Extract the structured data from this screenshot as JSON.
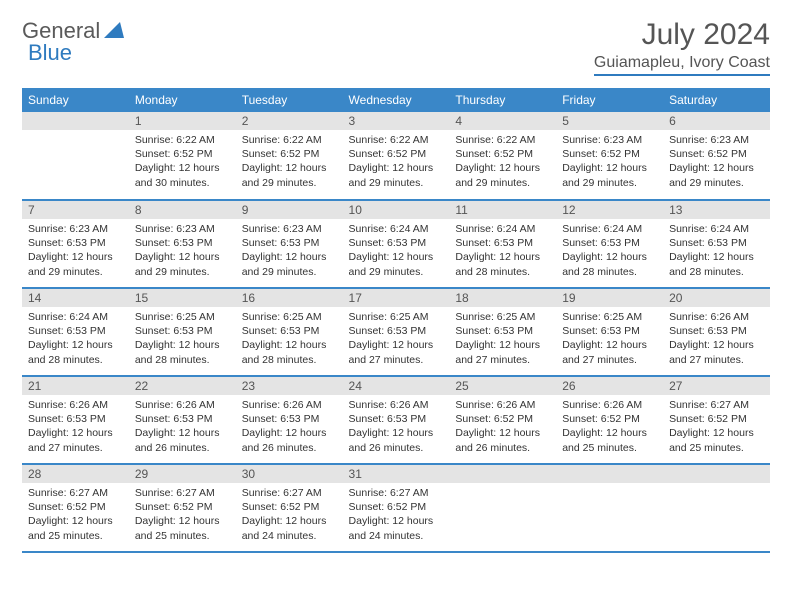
{
  "logo": {
    "general": "General",
    "blue": "Blue"
  },
  "title": "July 2024",
  "location": "Guiamapleu, Ivory Coast",
  "colors": {
    "header_bg": "#3a87c8",
    "daynum_bg": "#e4e4e4",
    "border": "#3a87c8",
    "logo_blue": "#2f7bbf",
    "text": "#333333"
  },
  "weekdays": [
    "Sunday",
    "Monday",
    "Tuesday",
    "Wednesday",
    "Thursday",
    "Friday",
    "Saturday"
  ],
  "weeks": [
    [
      {
        "num": "",
        "lines": []
      },
      {
        "num": "1",
        "lines": [
          "Sunrise: 6:22 AM",
          "Sunset: 6:52 PM",
          "Daylight: 12 hours and 30 minutes."
        ]
      },
      {
        "num": "2",
        "lines": [
          "Sunrise: 6:22 AM",
          "Sunset: 6:52 PM",
          "Daylight: 12 hours and 29 minutes."
        ]
      },
      {
        "num": "3",
        "lines": [
          "Sunrise: 6:22 AM",
          "Sunset: 6:52 PM",
          "Daylight: 12 hours and 29 minutes."
        ]
      },
      {
        "num": "4",
        "lines": [
          "Sunrise: 6:22 AM",
          "Sunset: 6:52 PM",
          "Daylight: 12 hours and 29 minutes."
        ]
      },
      {
        "num": "5",
        "lines": [
          "Sunrise: 6:23 AM",
          "Sunset: 6:52 PM",
          "Daylight: 12 hours and 29 minutes."
        ]
      },
      {
        "num": "6",
        "lines": [
          "Sunrise: 6:23 AM",
          "Sunset: 6:52 PM",
          "Daylight: 12 hours and 29 minutes."
        ]
      }
    ],
    [
      {
        "num": "7",
        "lines": [
          "Sunrise: 6:23 AM",
          "Sunset: 6:53 PM",
          "Daylight: 12 hours and 29 minutes."
        ]
      },
      {
        "num": "8",
        "lines": [
          "Sunrise: 6:23 AM",
          "Sunset: 6:53 PM",
          "Daylight: 12 hours and 29 minutes."
        ]
      },
      {
        "num": "9",
        "lines": [
          "Sunrise: 6:23 AM",
          "Sunset: 6:53 PM",
          "Daylight: 12 hours and 29 minutes."
        ]
      },
      {
        "num": "10",
        "lines": [
          "Sunrise: 6:24 AM",
          "Sunset: 6:53 PM",
          "Daylight: 12 hours and 29 minutes."
        ]
      },
      {
        "num": "11",
        "lines": [
          "Sunrise: 6:24 AM",
          "Sunset: 6:53 PM",
          "Daylight: 12 hours and 28 minutes."
        ]
      },
      {
        "num": "12",
        "lines": [
          "Sunrise: 6:24 AM",
          "Sunset: 6:53 PM",
          "Daylight: 12 hours and 28 minutes."
        ]
      },
      {
        "num": "13",
        "lines": [
          "Sunrise: 6:24 AM",
          "Sunset: 6:53 PM",
          "Daylight: 12 hours and 28 minutes."
        ]
      }
    ],
    [
      {
        "num": "14",
        "lines": [
          "Sunrise: 6:24 AM",
          "Sunset: 6:53 PM",
          "Daylight: 12 hours and 28 minutes."
        ]
      },
      {
        "num": "15",
        "lines": [
          "Sunrise: 6:25 AM",
          "Sunset: 6:53 PM",
          "Daylight: 12 hours and 28 minutes."
        ]
      },
      {
        "num": "16",
        "lines": [
          "Sunrise: 6:25 AM",
          "Sunset: 6:53 PM",
          "Daylight: 12 hours and 28 minutes."
        ]
      },
      {
        "num": "17",
        "lines": [
          "Sunrise: 6:25 AM",
          "Sunset: 6:53 PM",
          "Daylight: 12 hours and 27 minutes."
        ]
      },
      {
        "num": "18",
        "lines": [
          "Sunrise: 6:25 AM",
          "Sunset: 6:53 PM",
          "Daylight: 12 hours and 27 minutes."
        ]
      },
      {
        "num": "19",
        "lines": [
          "Sunrise: 6:25 AM",
          "Sunset: 6:53 PM",
          "Daylight: 12 hours and 27 minutes."
        ]
      },
      {
        "num": "20",
        "lines": [
          "Sunrise: 6:26 AM",
          "Sunset: 6:53 PM",
          "Daylight: 12 hours and 27 minutes."
        ]
      }
    ],
    [
      {
        "num": "21",
        "lines": [
          "Sunrise: 6:26 AM",
          "Sunset: 6:53 PM",
          "Daylight: 12 hours and 27 minutes."
        ]
      },
      {
        "num": "22",
        "lines": [
          "Sunrise: 6:26 AM",
          "Sunset: 6:53 PM",
          "Daylight: 12 hours and 26 minutes."
        ]
      },
      {
        "num": "23",
        "lines": [
          "Sunrise: 6:26 AM",
          "Sunset: 6:53 PM",
          "Daylight: 12 hours and 26 minutes."
        ]
      },
      {
        "num": "24",
        "lines": [
          "Sunrise: 6:26 AM",
          "Sunset: 6:53 PM",
          "Daylight: 12 hours and 26 minutes."
        ]
      },
      {
        "num": "25",
        "lines": [
          "Sunrise: 6:26 AM",
          "Sunset: 6:52 PM",
          "Daylight: 12 hours and 26 minutes."
        ]
      },
      {
        "num": "26",
        "lines": [
          "Sunrise: 6:26 AM",
          "Sunset: 6:52 PM",
          "Daylight: 12 hours and 25 minutes."
        ]
      },
      {
        "num": "27",
        "lines": [
          "Sunrise: 6:27 AM",
          "Sunset: 6:52 PM",
          "Daylight: 12 hours and 25 minutes."
        ]
      }
    ],
    [
      {
        "num": "28",
        "lines": [
          "Sunrise: 6:27 AM",
          "Sunset: 6:52 PM",
          "Daylight: 12 hours and 25 minutes."
        ]
      },
      {
        "num": "29",
        "lines": [
          "Sunrise: 6:27 AM",
          "Sunset: 6:52 PM",
          "Daylight: 12 hours and 25 minutes."
        ]
      },
      {
        "num": "30",
        "lines": [
          "Sunrise: 6:27 AM",
          "Sunset: 6:52 PM",
          "Daylight: 12 hours and 24 minutes."
        ]
      },
      {
        "num": "31",
        "lines": [
          "Sunrise: 6:27 AM",
          "Sunset: 6:52 PM",
          "Daylight: 12 hours and 24 minutes."
        ]
      },
      {
        "num": "",
        "lines": []
      },
      {
        "num": "",
        "lines": []
      },
      {
        "num": "",
        "lines": []
      }
    ]
  ]
}
